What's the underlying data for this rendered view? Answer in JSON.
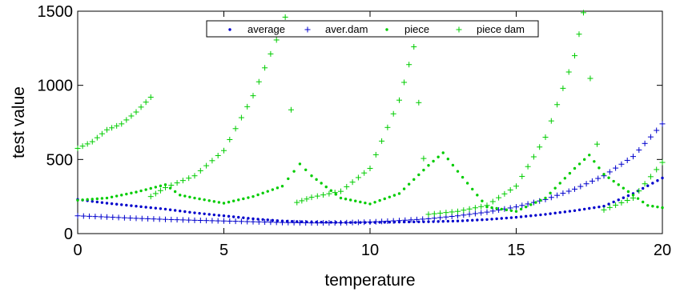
{
  "chart_data": {
    "type": "scatter",
    "title": "",
    "xlabel": "temperature",
    "ylabel": "test value",
    "xlim": [
      0,
      20
    ],
    "ylim": [
      0,
      1500
    ],
    "xticks": [
      0,
      5,
      10,
      15,
      20
    ],
    "yticks": [
      0,
      500,
      1000,
      1500
    ],
    "grid": false,
    "legend_position": "top-center",
    "series": [
      {
        "name": "average",
        "marker": "dot",
        "color": "#0000cc",
        "x": [
          0.0,
          1.0,
          2.0,
          3.0,
          4.0,
          5.0,
          6.0,
          7.0,
          8.0,
          9.0,
          10.0,
          11.0,
          12.0,
          13.0,
          14.0,
          15.0,
          16.0,
          17.0,
          18.0,
          19.0,
          20.0
        ],
        "y": [
          230,
          205,
          185,
          165,
          140,
          120,
          100,
          85,
          78,
          75,
          75,
          78,
          80,
          85,
          95,
          110,
          130,
          155,
          185,
          270,
          375
        ]
      },
      {
        "name": "aver.dam",
        "marker": "plus",
        "color": "#0000cc",
        "x": [
          0.0,
          1.0,
          2.0,
          3.0,
          4.0,
          5.0,
          6.0,
          7.0,
          8.0,
          9.0,
          10.0,
          11.0,
          12.0,
          13.0,
          14.0,
          15.0,
          16.0,
          17.0,
          18.0,
          19.0,
          20.0
        ],
        "y": [
          120,
          112,
          103,
          96,
          90,
          85,
          80,
          75,
          72,
          73,
          78,
          88,
          100,
          120,
          145,
          180,
          230,
          300,
          390,
          520,
          740
        ]
      },
      {
        "name": "piece",
        "marker": "dot",
        "color": "#00cc00",
        "x": [
          0.0,
          1.0,
          2.0,
          3.0,
          3.5,
          4.0,
          5.0,
          6.0,
          7.0,
          7.6,
          8.0,
          9.0,
          10.0,
          11.0,
          12.0,
          12.5,
          13.0,
          14.0,
          15.0,
          16.0,
          17.0,
          17.5,
          18.0,
          19.0,
          19.5,
          20.0
        ],
        "y": [
          225,
          240,
          280,
          330,
          260,
          240,
          205,
          250,
          320,
          470,
          390,
          240,
          200,
          270,
          460,
          545,
          420,
          180,
          150,
          240,
          440,
          530,
          400,
          260,
          190,
          175
        ]
      },
      {
        "name": "piece dam",
        "marker": "plus",
        "color": "#00cc00",
        "x": [
          0.0,
          0.5,
          1.0,
          1.5,
          2.0,
          2.5,
          2.5,
          3.0,
          4.0,
          5.0,
          6.0,
          7.0,
          7.1,
          7.5,
          8.0,
          9.0,
          10.0,
          11.0,
          11.5,
          12.0,
          13.0,
          14.0,
          15.0,
          16.0,
          17.0,
          17.3,
          18.0,
          19.0,
          20.0
        ],
        "y": [
          575,
          620,
          700,
          740,
          820,
          920,
          250,
          310,
          390,
          560,
          930,
          1400,
          1460,
          210,
          245,
          285,
          440,
          900,
          1260,
          130,
          150,
          190,
          320,
          650,
          1200,
          1490,
          160,
          240,
          480
        ]
      }
    ]
  }
}
